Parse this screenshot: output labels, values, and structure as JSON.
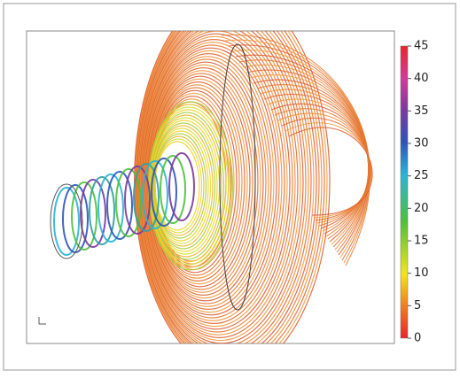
{
  "colorbar": {
    "range": [
      0,
      45
    ],
    "ticks": [
      0,
      5,
      10,
      15,
      20,
      25,
      30,
      35,
      40,
      45
    ]
  }
}
